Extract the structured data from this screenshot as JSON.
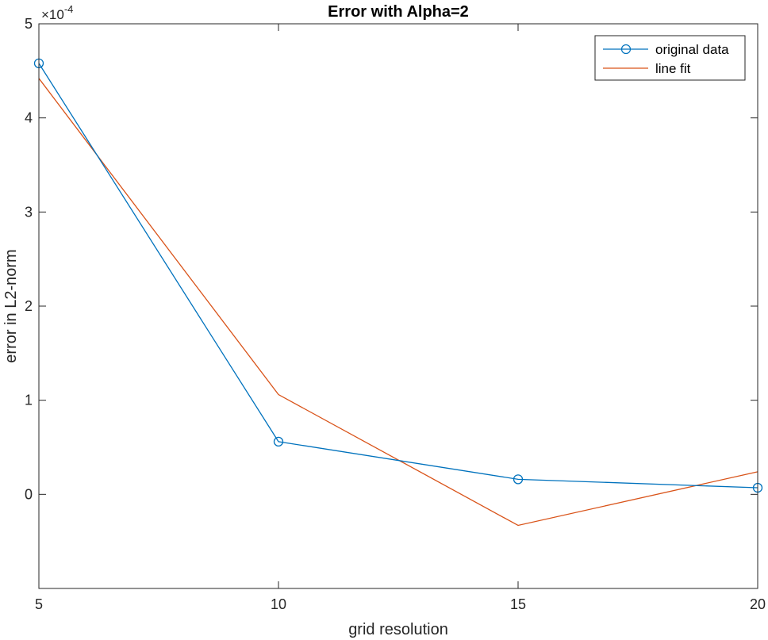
{
  "chart_data": {
    "type": "line",
    "title": "Error with Alpha=2",
    "xlabel": "grid resolution",
    "ylabel": "error in L2-norm",
    "xlim": [
      5,
      20
    ],
    "ylim": [
      -1,
      5
    ],
    "y_exponent_label": "×10",
    "y_exponent_power": "-4",
    "y_scale_note": "y values shown in units of 1e-4",
    "x_ticks": [
      5,
      10,
      15,
      20
    ],
    "y_ticks": [
      0,
      1,
      2,
      3,
      4,
      5
    ],
    "x_tick_labels": [
      "5",
      "10",
      "15",
      "20"
    ],
    "y_tick_labels": [
      "0",
      "1",
      "2",
      "3",
      "4",
      "5"
    ],
    "grid": false,
    "legend_position": "top-right",
    "series": [
      {
        "name": "original data",
        "color": "#0072BD",
        "marker": "circle",
        "x": [
          5,
          10,
          15,
          20
        ],
        "y": [
          4.58,
          0.56,
          0.16,
          0.07
        ]
      },
      {
        "name": "line fit",
        "color": "#D95319",
        "marker": "none",
        "x": [
          5,
          10,
          15,
          20
        ],
        "y": [
          4.42,
          1.06,
          -0.33,
          0.24
        ]
      }
    ]
  }
}
